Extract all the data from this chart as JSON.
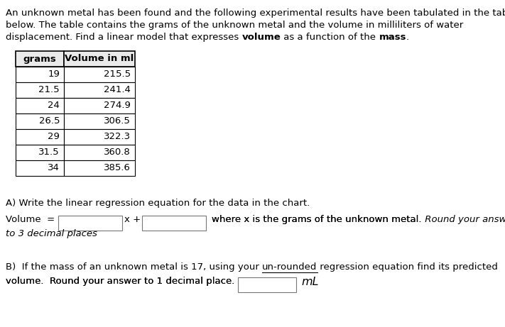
{
  "bg_color": "#ffffff",
  "text_color": "#000000",
  "blue_color": "#1F3864",
  "font_size": 9.5,
  "table_data": [
    [
      19,
      215.5
    ],
    [
      21.5,
      241.4
    ],
    [
      24,
      274.9
    ],
    [
      26.5,
      306.5
    ],
    [
      29,
      322.3
    ],
    [
      31.5,
      360.8
    ],
    [
      34,
      385.6
    ]
  ],
  "table_headers": [
    "grams",
    "Volume in ml"
  ],
  "line1": "An unknown metal has been found and the following experimental results have been tabulated in the table",
  "line2": "below. The table contains the grams of the unknown metal and the volume in milliliters of water",
  "line3_plain1": "displacement. Find a linear model that expresses ",
  "line3_bold1": "volume",
  "line3_plain2": " as a function of the ",
  "line3_bold2": "mass",
  "line3_plain3": ".",
  "sect_a": "A) Write the linear regression equation for the data in the chart.",
  "vol_text": "Volume  =",
  "x_plus": "x +",
  "where_text": "where x is the grams of the unknown metal.",
  "round_text": " Round your answers",
  "decimal_text": "to 3 decimal places",
  "sect_b_p1": "B)  If the mass of an unknown metal is 17, using your ",
  "sect_b_ul": "un-rounded",
  "sect_b_p2": " regression equation find its predicted",
  "sect_b2": "volume.  Round your answer to 1 decimal place.",
  "ml_text": "mL"
}
